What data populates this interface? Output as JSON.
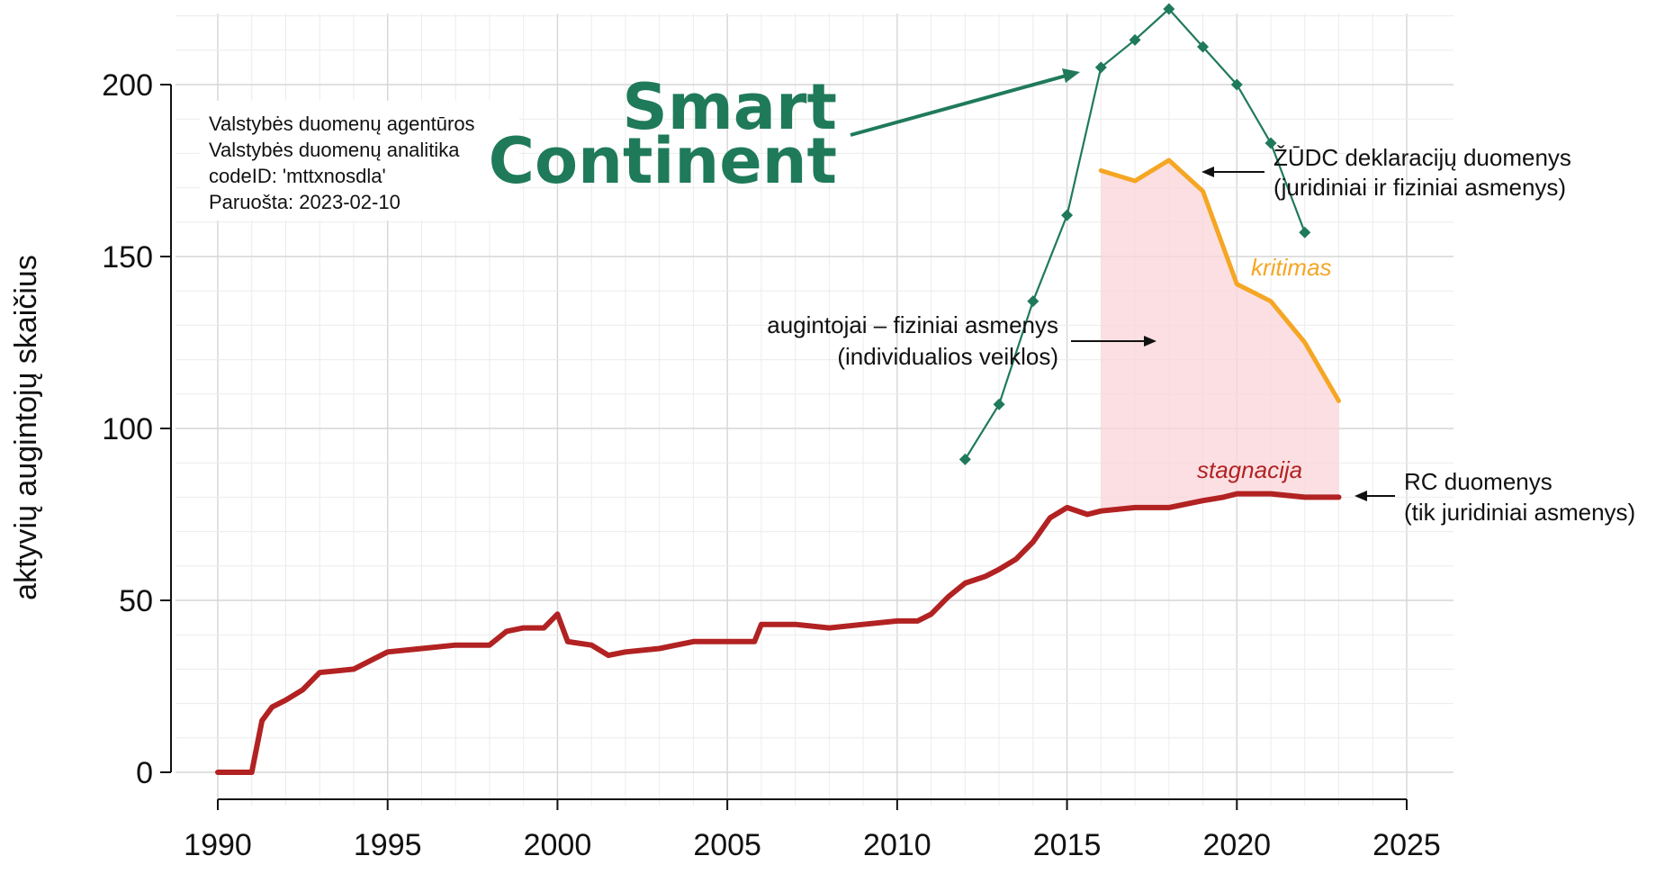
{
  "chart_data": {
    "type": "line",
    "ylabel": "aktyvių augintojų skaičius",
    "xlabel": "",
    "xlim": [
      1990,
      2025
    ],
    "ylim": [
      0,
      200
    ],
    "x_ticks": [
      "1990",
      "1995",
      "2000",
      "2005",
      "2010",
      "2015",
      "2020",
      "2025"
    ],
    "y_ticks": [
      "0",
      "50",
      "100",
      "150",
      "200"
    ],
    "grid": true,
    "series": [
      {
        "name": "RC duomenys (tik juridiniai asmenys)",
        "color": "#b22222",
        "x": [
          1990,
          1991,
          1991.3,
          1991.6,
          1992,
          1992.5,
          1993,
          1994,
          1994.6,
          1995,
          1996,
          1997,
          1998,
          1998.5,
          1999,
          1999.6,
          2000,
          2000.3,
          2001,
          2001.5,
          2002,
          2003,
          2004,
          2005,
          2005.8,
          2006,
          2006.5,
          2007,
          2008,
          2009,
          2010,
          2010.6,
          2011,
          2011.5,
          2012,
          2012.6,
          2013,
          2013.5,
          2014,
          2014.5,
          2015,
          2015.6,
          2016,
          2017,
          2018,
          2019,
          2019.6,
          2020,
          2021,
          2022,
          2023
        ],
        "y": [
          0,
          0,
          15,
          19,
          21,
          24,
          29,
          30,
          33,
          35,
          36,
          37,
          37,
          41,
          42,
          42,
          46,
          38,
          37,
          34,
          35,
          36,
          38,
          38,
          38,
          43,
          43,
          43,
          42,
          43,
          44,
          44,
          46,
          51,
          55,
          57,
          59,
          62,
          67,
          74,
          77,
          75,
          76,
          77,
          77,
          79,
          80,
          81,
          81,
          80,
          80
        ]
      },
      {
        "name": "ŽŪDC deklaracijų duomenys (juridiniai ir fiziniai asmenys)",
        "color": "#f5a623",
        "x": [
          2016,
          2017,
          2018,
          2019,
          2020,
          2021,
          2022,
          2023
        ],
        "y": [
          175,
          172,
          178,
          169,
          142,
          137,
          125,
          108
        ]
      },
      {
        "name": "augintojai – fiziniai asmenys (individualios veiklos)",
        "color": "#1f7a5a",
        "x": [
          2012,
          2013,
          2014,
          2015,
          2016,
          2017,
          2018,
          2019,
          2020,
          2021,
          2022
        ],
        "y": [
          91,
          107,
          137,
          162,
          205,
          213,
          222,
          211,
          200,
          183,
          157
        ]
      }
    ],
    "shaded_band": {
      "from_series": 1,
      "to_series": 0,
      "x_range": [
        2016,
        2023
      ],
      "color": "#f9d4d8"
    }
  },
  "info_box": {
    "lines": [
      "Valstybės duomenų agentūros",
      "Valstybės duomenų analitika",
      "codeID: 'mttxnosdla'",
      "Paruošta: 2023-02-10"
    ]
  },
  "logo": {
    "line1": "Smart",
    "line2": "Continent",
    "color": "#1f7a5a"
  },
  "annotations": {
    "zudc_line1": "ŽŪDC deklaracijų duomenys",
    "zudc_line2": "(juridiniai ir fiziniai asmenys)",
    "kritimas": "kritimas",
    "fiziniai_line1": "augintojai – fiziniai asmenys",
    "fiziniai_line2": "(individualios veiklos)",
    "stagnacija": "stagnacija",
    "rc_line1": "RC duomenys",
    "rc_line2": "(tik juridiniai asmenys)"
  }
}
